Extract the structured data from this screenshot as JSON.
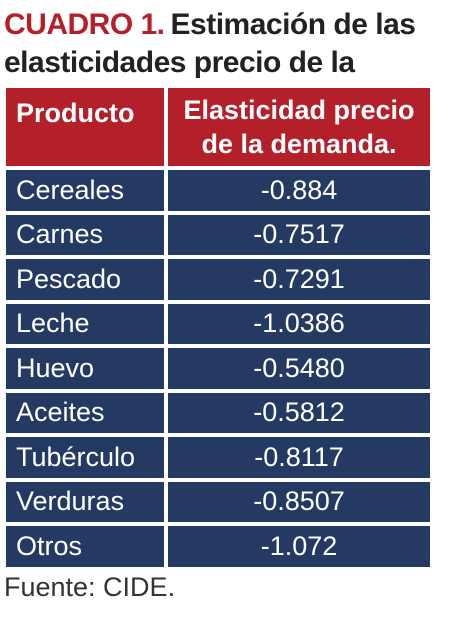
{
  "caption": {
    "label": "CUADRO 1.",
    "title": "Estimación de las elasticidades precio de la demanda."
  },
  "table": {
    "headers": [
      "Producto",
      "Elasticidad precio de la demanda."
    ],
    "rows": [
      {
        "product": "Cereales",
        "value": "-0.884"
      },
      {
        "product": "Carnes",
        "value": "-0.7517"
      },
      {
        "product": "Pescado",
        "value": "-0.7291"
      },
      {
        "product": "Leche",
        "value": "-1.0386"
      },
      {
        "product": "Huevo",
        "value": "-0.5480"
      },
      {
        "product": "Aceites",
        "value": "-0.5812"
      },
      {
        "product": "Tubérculo",
        "value": "-0.8117"
      },
      {
        "product": "Verduras",
        "value": "-0.8507"
      },
      {
        "product": "Otros",
        "value": "-1.072"
      }
    ]
  },
  "source": "Fuente: CIDE.",
  "colors": {
    "accent_red": "#b3202a",
    "row_navy": "#243a63"
  }
}
